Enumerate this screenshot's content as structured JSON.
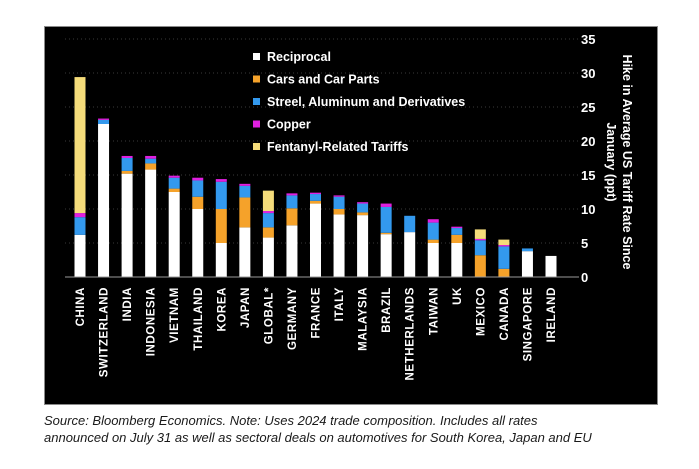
{
  "chart_data": {
    "type": "bar",
    "stacked": true,
    "title": "",
    "xlabel": "",
    "ylabel": "Hike in Average US Tariff Rate Since January (ppt)",
    "ylabel_lines": [
      "Hike in Average US Tariff Rate Since",
      "January (ppt)"
    ],
    "ylim": [
      0,
      35
    ],
    "yticks": [
      0,
      5,
      10,
      15,
      20,
      25,
      30,
      35
    ],
    "legend_position": "top-center",
    "categories": [
      "CHINA",
      "SWITZERLAND",
      "INDIA",
      "INDONESIA",
      "VIETNAM",
      "THAILAND",
      "KOREA",
      "JAPAN",
      "GLOBAL*",
      "GERMANY",
      "FRANCE",
      "ITALY",
      "MALAYSIA",
      "BRAZIL",
      "NETHERLANDS",
      "TAIWAN",
      "UK",
      "MEXICO",
      "CANADA",
      "SINGAPORE",
      "IRELAND"
    ],
    "series": [
      {
        "name": "Reciprocal",
        "color": "#ffffff",
        "values": [
          6.2,
          22.5,
          15.2,
          15.8,
          12.5,
          10.0,
          5.0,
          7.3,
          5.8,
          7.6,
          10.8,
          9.2,
          9.1,
          6.3,
          6.6,
          5.0,
          5.0,
          0.0,
          0.0,
          3.8,
          3.1
        ]
      },
      {
        "name": "Cars and Car Parts",
        "color": "#f5a22a",
        "values": [
          0.0,
          0.0,
          0.4,
          0.9,
          0.5,
          1.8,
          5.0,
          4.4,
          1.5,
          2.5,
          0.4,
          0.8,
          0.4,
          0.2,
          0.0,
          0.5,
          1.2,
          3.2,
          1.2,
          0.0,
          0.0
        ]
      },
      {
        "name": "Streel, Aluminum and Derivatives",
        "color": "#3399ee",
        "values": [
          2.6,
          0.6,
          1.9,
          0.7,
          1.6,
          2.4,
          4.0,
          1.7,
          2.1,
          1.9,
          1.0,
          1.8,
          1.3,
          3.8,
          2.4,
          2.5,
          1.0,
          2.2,
          3.3,
          0.4,
          0.0
        ]
      },
      {
        "name": "Copper",
        "color": "#e020e0",
        "values": [
          0.6,
          0.2,
          0.3,
          0.4,
          0.3,
          0.4,
          0.4,
          0.3,
          0.3,
          0.3,
          0.2,
          0.2,
          0.2,
          0.5,
          0.0,
          0.5,
          0.2,
          0.2,
          0.2,
          0.0,
          0.0
        ]
      },
      {
        "name": "Fentanyl-Related Tariffs",
        "color": "#f5dc7a",
        "values": [
          20.0,
          0.0,
          0.0,
          0.0,
          0.0,
          0.0,
          0.0,
          0.0,
          3.0,
          0.0,
          0.0,
          0.0,
          0.0,
          0.0,
          0.0,
          0.0,
          0.0,
          1.4,
          0.8,
          0.0,
          0.0
        ]
      }
    ]
  },
  "footer": {
    "note_line1": "Source: Bloomberg Economics. Note: Uses 2024 trade composition. Includes all rates",
    "note_line2": "announced on July 31 as well as sectoral deals on automotives for South Korea, Japan and EU"
  }
}
